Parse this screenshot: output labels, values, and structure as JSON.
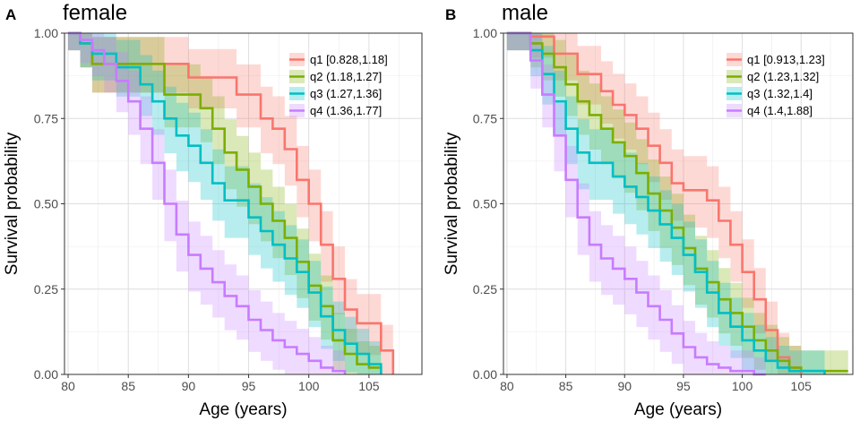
{
  "chart_data": [
    {
      "type": "line",
      "panel": "A",
      "title": "female",
      "xlabel": "Age (years)",
      "ylabel": "Survival probability",
      "xlim": [
        79.7,
        109.4
      ],
      "ylim": [
        0,
        1
      ],
      "xticks": [
        80,
        85,
        90,
        95,
        100,
        105
      ],
      "yticks": [
        0,
        0.25,
        0.5,
        0.75,
        1
      ],
      "ytick_labels": [
        "0.00",
        "0.25",
        "0.50",
        "0.75",
        "1.00"
      ],
      "grid": true,
      "legend_position": "top-right",
      "series": [
        {
          "name": "q1 [0.828,1.18]",
          "color": "#F8766D",
          "x": [
            80,
            81,
            82,
            88,
            90,
            91,
            92,
            94,
            96,
            97,
            98,
            99,
            100,
            101,
            102,
            103,
            104,
            105,
            106,
            107
          ],
          "y": [
            1.0,
            0.97,
            0.91,
            0.91,
            0.87,
            0.87,
            0.87,
            0.82,
            0.75,
            0.72,
            0.66,
            0.57,
            0.5,
            0.38,
            0.28,
            0.19,
            0.15,
            0.15,
            0.07,
            0.0
          ]
        },
        {
          "name": "q2 (1.18,1.27]",
          "color": "#7CAE00",
          "x": [
            80,
            81,
            82,
            86,
            88,
            89,
            91,
            92,
            93,
            94,
            95,
            96,
            97,
            98,
            99,
            100,
            101,
            102,
            103,
            104,
            105,
            106
          ],
          "y": [
            1.0,
            0.97,
            0.91,
            0.91,
            0.82,
            0.82,
            0.78,
            0.72,
            0.65,
            0.6,
            0.55,
            0.5,
            0.45,
            0.4,
            0.33,
            0.26,
            0.2,
            0.1,
            0.06,
            0.03,
            0.02,
            0.0
          ]
        },
        {
          "name": "q3 (1.27,1.36]",
          "color": "#00BFC4",
          "x": [
            80,
            81,
            82,
            84,
            86,
            87,
            88,
            89,
            90,
            91,
            92,
            93,
            95,
            96,
            97,
            98,
            99,
            100,
            101,
            102,
            103,
            104,
            105,
            106
          ],
          "y": [
            1.0,
            0.97,
            0.94,
            0.9,
            0.85,
            0.8,
            0.75,
            0.7,
            0.67,
            0.62,
            0.56,
            0.51,
            0.46,
            0.42,
            0.38,
            0.34,
            0.3,
            0.24,
            0.17,
            0.13,
            0.09,
            0.06,
            0.03,
            0.0
          ]
        },
        {
          "name": "q4 (1.36,1.77]",
          "color": "#C77CFF",
          "x": [
            80,
            81,
            82,
            83,
            84,
            85,
            86,
            87,
            88,
            89,
            90,
            91,
            92,
            93,
            94,
            95,
            96,
            97,
            98,
            99,
            100,
            101,
            102,
            103
          ],
          "y": [
            1.0,
            0.98,
            0.95,
            0.91,
            0.86,
            0.8,
            0.72,
            0.62,
            0.5,
            0.41,
            0.35,
            0.31,
            0.27,
            0.23,
            0.2,
            0.16,
            0.13,
            0.1,
            0.08,
            0.06,
            0.04,
            0.02,
            0.01,
            0.0
          ]
        }
      ]
    },
    {
      "type": "line",
      "panel": "B",
      "title": "male",
      "xlabel": "Age (years)",
      "ylabel": "Survival probability",
      "xlim": [
        79.7,
        109.4
      ],
      "ylim": [
        0,
        1
      ],
      "xticks": [
        80,
        85,
        90,
        95,
        100,
        105
      ],
      "yticks": [
        0,
        0.25,
        0.5,
        0.75,
        1
      ],
      "ytick_labels": [
        "0.00",
        "0.25",
        "0.50",
        "0.75",
        "1.00"
      ],
      "grid": true,
      "legend_position": "top-right",
      "series": [
        {
          "name": "q1 [0.913,1.23]",
          "color": "#F8766D",
          "x": [
            80,
            82,
            84,
            86,
            88,
            89,
            90,
            91,
            92,
            93,
            94,
            95,
            96,
            97,
            98,
            99,
            100,
            101,
            102,
            103,
            104,
            105
          ],
          "y": [
            1.0,
            0.99,
            0.94,
            0.88,
            0.83,
            0.79,
            0.76,
            0.72,
            0.67,
            0.62,
            0.56,
            0.54,
            0.54,
            0.51,
            0.45,
            0.38,
            0.3,
            0.22,
            0.13,
            0.05,
            0.02,
            0.0
          ]
        },
        {
          "name": "q2 (1.23,1.32]",
          "color": "#7CAE00",
          "x": [
            80,
            82,
            83,
            84,
            85,
            86,
            87,
            88,
            89,
            90,
            91,
            92,
            93,
            94,
            95,
            96,
            97,
            98,
            99,
            100,
            101,
            102,
            103,
            104,
            105,
            109
          ],
          "y": [
            1.0,
            0.97,
            0.94,
            0.9,
            0.85,
            0.8,
            0.76,
            0.72,
            0.68,
            0.64,
            0.59,
            0.53,
            0.48,
            0.43,
            0.37,
            0.31,
            0.27,
            0.22,
            0.18,
            0.14,
            0.1,
            0.07,
            0.04,
            0.02,
            0.01,
            0.01
          ]
        },
        {
          "name": "q3 (1.32,1.4]",
          "color": "#00BFC4",
          "x": [
            80,
            82,
            83,
            84,
            85,
            86,
            87,
            88,
            89,
            90,
            91,
            92,
            93,
            94,
            95,
            96,
            97,
            98,
            99,
            100,
            101,
            102,
            103,
            104,
            105,
            107
          ],
          "y": [
            1.0,
            0.95,
            0.88,
            0.8,
            0.72,
            0.65,
            0.62,
            0.62,
            0.58,
            0.55,
            0.52,
            0.48,
            0.44,
            0.4,
            0.35,
            0.3,
            0.24,
            0.18,
            0.14,
            0.1,
            0.07,
            0.04,
            0.02,
            0.01,
            0.01,
            0.0
          ]
        },
        {
          "name": "q4 (1.4,1.88]",
          "color": "#C77CFF",
          "x": [
            80,
            82,
            83,
            84,
            85,
            86,
            87,
            88,
            89,
            90,
            91,
            92,
            93,
            94,
            95,
            96,
            97,
            98,
            99,
            100,
            101,
            102
          ],
          "y": [
            1.0,
            0.92,
            0.82,
            0.7,
            0.57,
            0.46,
            0.38,
            0.34,
            0.31,
            0.28,
            0.24,
            0.2,
            0.16,
            0.12,
            0.08,
            0.05,
            0.03,
            0.02,
            0.01,
            0.01,
            0.0,
            0.0
          ]
        }
      ]
    }
  ]
}
